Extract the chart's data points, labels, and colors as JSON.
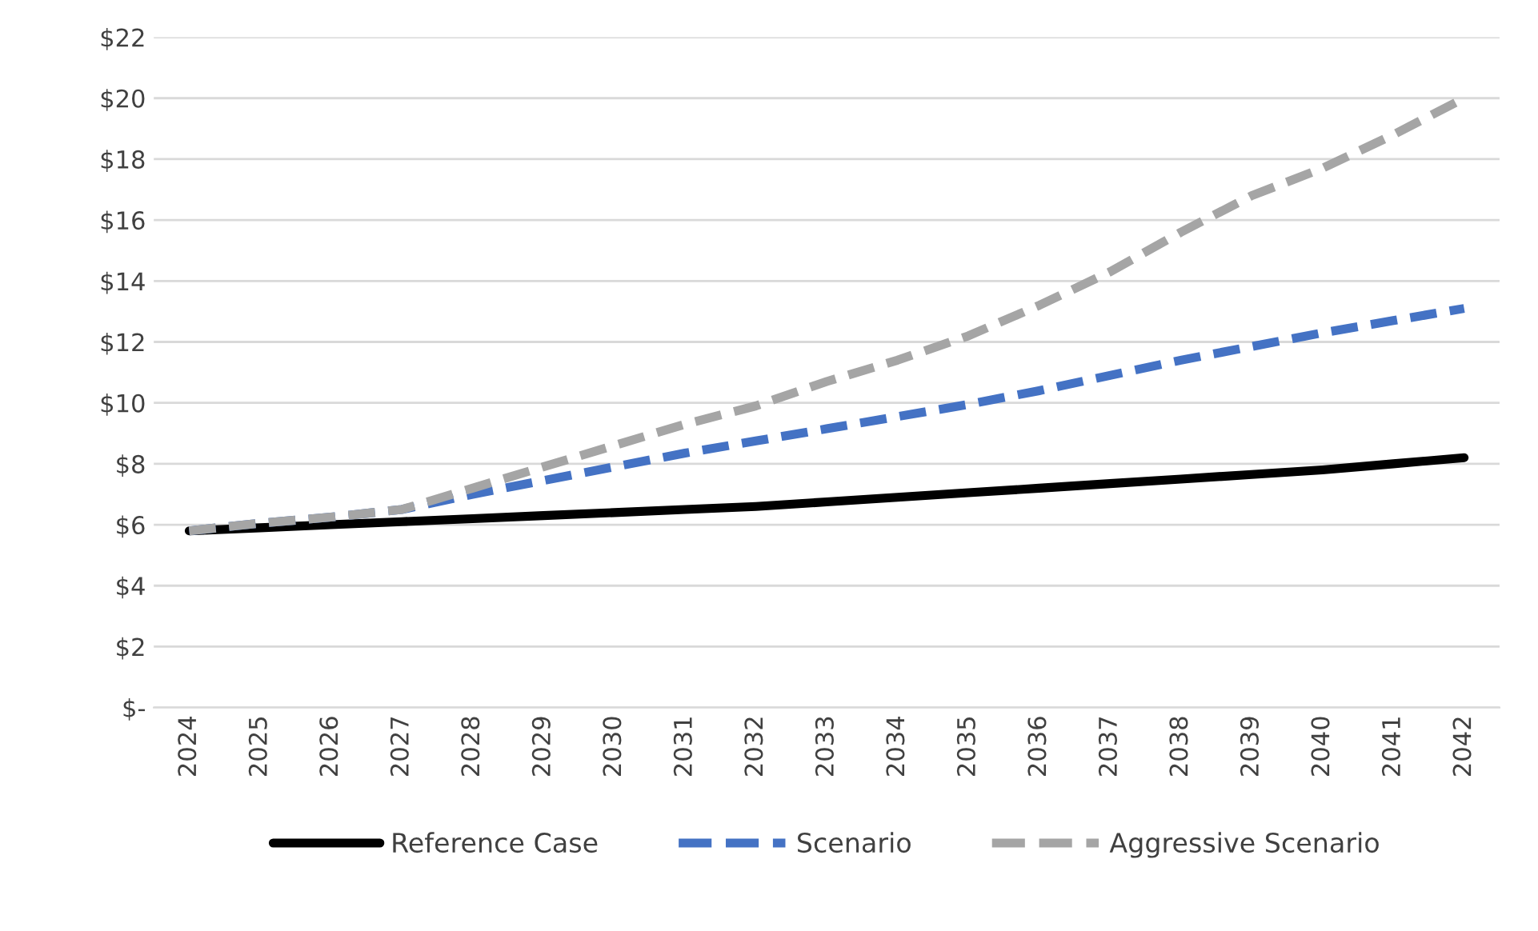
{
  "chart_data": {
    "type": "line",
    "categories": [
      "2024",
      "2025",
      "2026",
      "2027",
      "2028",
      "2029",
      "2030",
      "2031",
      "2032",
      "2033",
      "2034",
      "2035",
      "2036",
      "2037",
      "2038",
      "2039",
      "2040",
      "2041",
      "2042"
    ],
    "series": [
      {
        "name": "Reference Case",
        "color": "#000000",
        "line_style": "solid",
        "values": [
          5.8,
          5.9,
          6.0,
          6.1,
          6.2,
          6.3,
          6.4,
          6.5,
          6.6,
          6.75,
          6.9,
          7.05,
          7.2,
          7.35,
          7.5,
          7.65,
          7.8,
          8.0,
          8.2
        ]
      },
      {
        "name": "Scenario",
        "color": "#4472c4",
        "line_style": "dashed",
        "values": [
          5.8,
          6.05,
          6.25,
          6.5,
          7.0,
          7.45,
          7.9,
          8.35,
          8.75,
          9.15,
          9.55,
          9.95,
          10.4,
          10.9,
          11.4,
          11.85,
          12.3,
          12.7,
          13.1
        ]
      },
      {
        "name": "Aggressive Scenario",
        "color": "#a5a5a5",
        "line_style": "dashed",
        "values": [
          5.8,
          6.05,
          6.25,
          6.5,
          7.2,
          7.9,
          8.6,
          9.3,
          9.9,
          10.7,
          11.4,
          12.2,
          13.2,
          14.3,
          15.6,
          16.8,
          17.7,
          18.8,
          20.0
        ]
      }
    ],
    "ylim": [
      0,
      22
    ],
    "yticks": [
      {
        "value": 0,
        "label": "$-"
      },
      {
        "value": 2,
        "label": "$2"
      },
      {
        "value": 4,
        "label": "$4"
      },
      {
        "value": 6,
        "label": "$6"
      },
      {
        "value": 8,
        "label": "$8"
      },
      {
        "value": 10,
        "label": "$10"
      },
      {
        "value": 12,
        "label": "$12"
      },
      {
        "value": 14,
        "label": "$14"
      },
      {
        "value": 16,
        "label": "$16"
      },
      {
        "value": 18,
        "label": "$18"
      },
      {
        "value": 20,
        "label": "$20"
      },
      {
        "value": 22,
        "label": "$22"
      }
    ],
    "grid": "y",
    "legend": "bottom",
    "marker": "none"
  }
}
